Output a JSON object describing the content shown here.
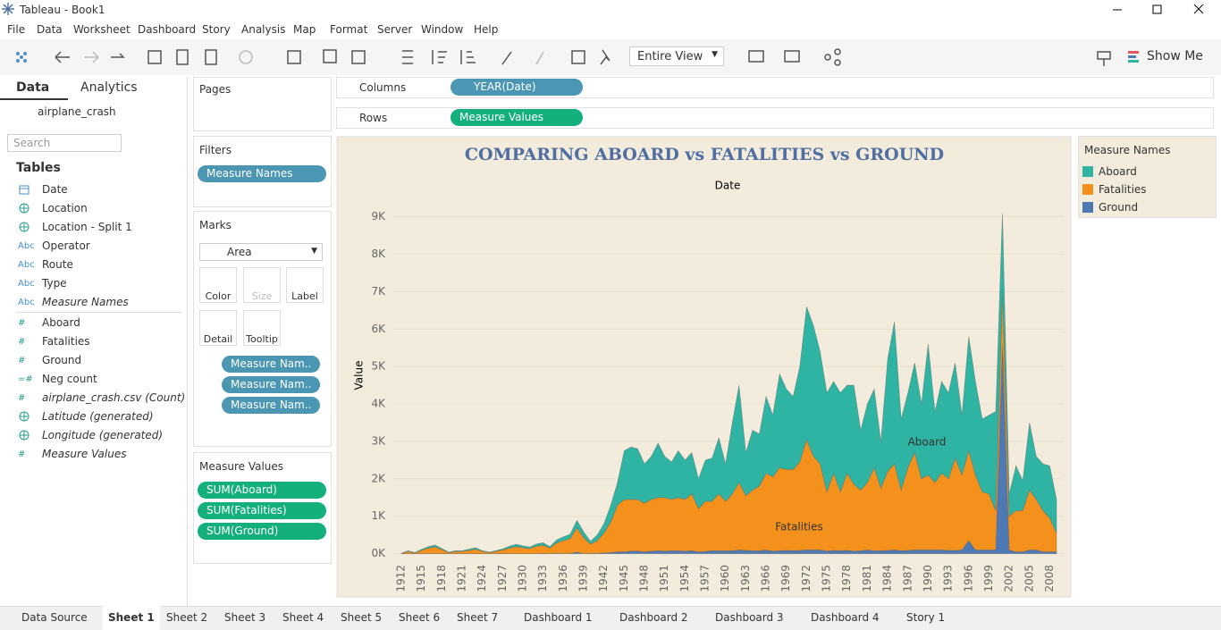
{
  "window": {
    "title": "Tableau - Book1"
  },
  "menu": [
    "File",
    "Data",
    "Worksheet",
    "Dashboard",
    "Story",
    "Analysis",
    "Map",
    "Format",
    "Server",
    "Window",
    "Help"
  ],
  "toolbar": {
    "fit": "Entire View",
    "show_me": "Show Me"
  },
  "data_pane": {
    "tabs": [
      "Data",
      "Analytics"
    ],
    "datasource": "airplane_crash",
    "search_placeholder": "Search",
    "tables_heading": "Tables",
    "dimensions": [
      {
        "name": "Date",
        "kind": "date"
      },
      {
        "name": "Location",
        "kind": "geo"
      },
      {
        "name": "Location - Split 1",
        "kind": "geo"
      },
      {
        "name": "Operator",
        "icon": "Abc"
      },
      {
        "name": "Route",
        "icon": "Abc"
      },
      {
        "name": "Type",
        "icon": "Abc"
      },
      {
        "name": "Measure Names",
        "icon": "Abc",
        "italic": true
      }
    ],
    "measures": [
      {
        "name": "Aboard",
        "icon": "#"
      },
      {
        "name": "Fatalities",
        "icon": "#"
      },
      {
        "name": "Ground",
        "icon": "#"
      },
      {
        "name": "Neg count",
        "icon": "=#"
      },
      {
        "name": "airplane_crash.csv (Count)",
        "icon": "#",
        "italic": true
      },
      {
        "name": "Latitude (generated)",
        "kind": "geo",
        "italic": true
      },
      {
        "name": "Longitude (generated)",
        "kind": "geo",
        "italic": true
      },
      {
        "name": "Measure Values",
        "icon": "#",
        "italic": true
      }
    ]
  },
  "shelves": {
    "pages": "Pages",
    "columns": {
      "label": "Columns",
      "pill": "YEAR(Date)"
    },
    "rows": {
      "label": "Rows",
      "pill": "Measure Values"
    },
    "filters": {
      "label": "Filters",
      "pills": [
        "Measure Names"
      ]
    },
    "marks": {
      "label": "Marks",
      "type": "Area",
      "buttons": [
        "Color",
        "Size",
        "Label",
        "Detail",
        "Tooltip"
      ],
      "pills": [
        "Measure Nam..",
        "Measure Nam..",
        "Measure Nam.."
      ]
    },
    "measure_values": {
      "label": "Measure Values",
      "pills": [
        "SUM(Aboard)",
        "SUM(Fatalities)",
        "SUM(Ground)"
      ]
    }
  },
  "sheet_tabs": [
    "Data Source",
    "Sheet 1",
    "Sheet 2",
    "Sheet 3",
    "Sheet 4",
    "Sheet 5",
    "Sheet 6",
    "Sheet 7",
    "Dashboard 1",
    "Dashboard 2",
    "Dashboard 3",
    "Dashboard 4",
    "Story 1"
  ],
  "chart_data": {
    "type": "area",
    "stacked": true,
    "title": "COMPARING ABOARD vs FATALITIES vs GROUND",
    "x_label": "Date",
    "y_label": "Value",
    "legend_title": "Measure Names",
    "x": [
      1912,
      1913,
      1914,
      1915,
      1916,
      1917,
      1918,
      1919,
      1920,
      1921,
      1922,
      1923,
      1924,
      1925,
      1926,
      1927,
      1928,
      1929,
      1930,
      1931,
      1932,
      1933,
      1934,
      1935,
      1936,
      1937,
      1938,
      1939,
      1940,
      1941,
      1942,
      1943,
      1944,
      1945,
      1946,
      1947,
      1948,
      1949,
      1950,
      1951,
      1952,
      1953,
      1954,
      1955,
      1956,
      1957,
      1958,
      1959,
      1960,
      1961,
      1962,
      1963,
      1964,
      1965,
      1966,
      1967,
      1968,
      1969,
      1970,
      1971,
      1972,
      1973,
      1974,
      1975,
      1976,
      1977,
      1978,
      1979,
      1980,
      1981,
      1982,
      1983,
      1984,
      1985,
      1986,
      1987,
      1988,
      1989,
      1990,
      1991,
      1992,
      1993,
      1994,
      1995,
      1996,
      1997,
      1998,
      1999,
      2000,
      2001,
      2002,
      2003,
      2004,
      2005,
      2006,
      2007,
      2008,
      2009
    ],
    "series": [
      {
        "name": "Aboard",
        "color": "#2fb4a4",
        "values": [
          5,
          20,
          10,
          30,
          40,
          50,
          30,
          10,
          20,
          20,
          30,
          40,
          20,
          10,
          20,
          30,
          50,
          60,
          50,
          40,
          60,
          70,
          40,
          80,
          100,
          120,
          200,
          150,
          80,
          150,
          250,
          450,
          600,
          1300,
          1400,
          1350,
          1050,
          1150,
          1450,
          1100,
          1000,
          1250,
          1050,
          1100,
          800,
          1100,
          1150,
          1500,
          1000,
          1900,
          2600,
          1150,
          1600,
          1400,
          2050,
          1650,
          2500,
          2150,
          1950,
          2550,
          3550,
          3500,
          3000,
          2650,
          2450,
          2650,
          2350,
          2650,
          1600,
          2100,
          2100,
          1250,
          3000,
          3800,
          1900,
          2000,
          2400,
          2000,
          3500,
          1900,
          2450,
          2300,
          2550,
          1600,
          3050,
          2500,
          1950,
          2100,
          2650,
          2100,
          600,
          1200,
          800,
          1800,
          1150,
          1250,
          1400,
          900
        ]
      },
      {
        "name": "Fatalities",
        "color": "#f4911c",
        "values": [
          5,
          60,
          20,
          90,
          150,
          180,
          110,
          30,
          60,
          60,
          90,
          120,
          60,
          30,
          60,
          100,
          150,
          190,
          160,
          140,
          200,
          220,
          150,
          280,
          350,
          400,
          650,
          430,
          250,
          340,
          530,
          820,
          1250,
          1400,
          1380,
          1380,
          1300,
          1380,
          1420,
          1430,
          1370,
          1420,
          1380,
          1520,
          1150,
          1340,
          1320,
          1520,
          1320,
          1520,
          1800,
          1460,
          1620,
          1720,
          2050,
          1980,
          2220,
          2160,
          2170,
          2360,
          2950,
          2500,
          2300,
          1580,
          2060,
          1570,
          2060,
          1780,
          1620,
          1800,
          2220,
          1670,
          2110,
          2300,
          1620,
          2210,
          2600,
          1900,
          2000,
          1800,
          2050,
          1910,
          2460,
          2000,
          2400,
          2000,
          1550,
          1500,
          1050,
          1400,
          900,
          1100,
          1100,
          1600,
          1350,
          1100,
          900,
          500
        ]
      },
      {
        "name": "Ground",
        "color": "#4e79b5",
        "values": [
          0,
          0,
          0,
          0,
          0,
          0,
          0,
          0,
          0,
          0,
          0,
          0,
          0,
          0,
          0,
          0,
          0,
          0,
          0,
          0,
          0,
          5,
          0,
          10,
          0,
          5,
          40,
          0,
          5,
          10,
          20,
          30,
          50,
          50,
          70,
          70,
          50,
          70,
          80,
          70,
          80,
          80,
          70,
          80,
          50,
          60,
          80,
          80,
          80,
          80,
          100,
          90,
          80,
          80,
          100,
          70,
          80,
          90,
          80,
          90,
          100,
          100,
          100,
          70,
          90,
          80,
          90,
          70,
          80,
          100,
          80,
          80,
          90,
          100,
          80,
          90,
          100,
          100,
          100,
          100,
          100,
          90,
          90,
          100,
          350,
          100,
          100,
          100,
          100,
          5600,
          100,
          50,
          50,
          100,
          100,
          50,
          50,
          50
        ]
      }
    ],
    "xlim": [
      1912,
      2009
    ],
    "xticks": [
      1912,
      1915,
      1918,
      1921,
      1924,
      1927,
      1930,
      1933,
      1936,
      1939,
      1942,
      1945,
      1948,
      1951,
      1954,
      1957,
      1960,
      1963,
      1966,
      1969,
      1972,
      1975,
      1978,
      1981,
      1984,
      1987,
      1990,
      1993,
      1996,
      1999,
      2002,
      2005,
      2008
    ],
    "ylim": [
      -200,
      9300
    ],
    "yticks": [
      {
        "value": 0,
        "label": "0K"
      },
      {
        "value": 1000,
        "label": "1K"
      },
      {
        "value": 2000,
        "label": "2K"
      },
      {
        "value": 3000,
        "label": "3K"
      },
      {
        "value": 4000,
        "label": "4K"
      },
      {
        "value": 5000,
        "label": "5K"
      },
      {
        "value": 6000,
        "label": "6K"
      },
      {
        "value": 7000,
        "label": "7K"
      },
      {
        "value": 8000,
        "label": "8K"
      },
      {
        "value": 9000,
        "label": "9K"
      }
    ],
    "grid": true
  }
}
